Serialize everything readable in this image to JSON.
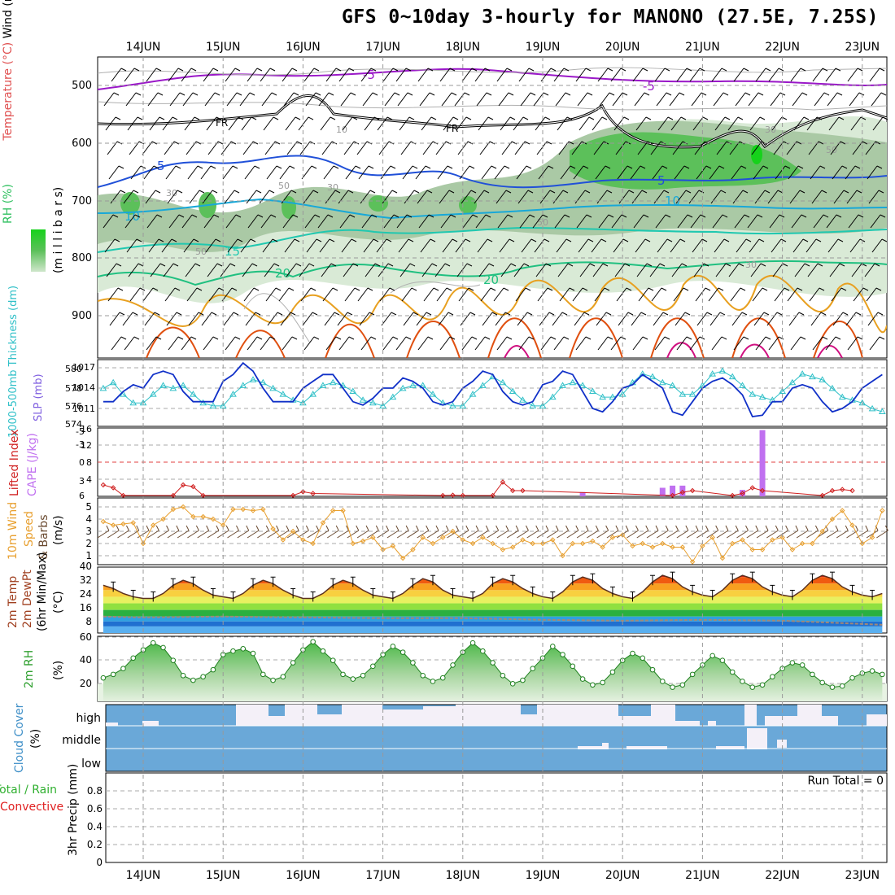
{
  "title": "GFS 0~10day 3-hourly for MANONO (27.5E, 7.25S)",
  "x_days": [
    "14JUN",
    "15JUN",
    "16JUN",
    "17JUN",
    "18JUN",
    "19JUN",
    "20JUN",
    "21JUN",
    "22JUN",
    "23JUN"
  ],
  "colors": {
    "rh_fill": "#d9ead6",
    "rh_mid": "#9ebf9a",
    "rh_high": "#5cc05a",
    "rh_max": "#16d21b",
    "temp_purple": "#9a18c8",
    "temp_blue": "#2050d8",
    "temp_cyan": "#18a8d8",
    "temp_teal": "#20c8b0",
    "temp_green": "#20c080",
    "temp_orange": "#e8a020",
    "temp_red": "#e05010",
    "temp_magenta": "#d01080",
    "freezing": "#000000",
    "slp": "#1030c8",
    "thickness": "#30c0c8",
    "lifted_index": "#d02020",
    "cape": "#c070f0",
    "wind10": "#e8a030",
    "cloud": "#6aa8d8",
    "cloud_clear": "#f4f0f8",
    "rh2m": "#40b040"
  },
  "panels": {
    "upper": {
      "labels": {
        "wind": "Wind (m/s)",
        "temperature": "Temperature (°C)",
        "rh": "RH (%)",
        "mb": "(m i l l i b a r s)"
      },
      "y_ticks": [
        "500",
        "600",
        "700",
        "800",
        "900"
      ],
      "contour_labels": [
        "-5",
        "-5",
        "FR",
        "FR",
        "5",
        "5",
        "10",
        "10",
        "15",
        "20",
        "20",
        "10",
        "30",
        "50",
        "50",
        "30",
        "30",
        "50",
        "50",
        "30"
      ]
    },
    "slp": {
      "label_left": "1000-500mb Thickness (dm)",
      "label_right": "SLP (mb)",
      "left_ticks": [
        "580",
        "578",
        "576",
        "574"
      ],
      "right_ticks": [
        "1017",
        "1014",
        "1011"
      ]
    },
    "li": {
      "label_left": "Lifted Index",
      "label_right": "CAPE (J/kg)",
      "left_ticks": [
        "-5",
        "-3",
        "0",
        "3",
        "6"
      ],
      "right_ticks": [
        "16",
        "12",
        "8",
        "4"
      ]
    },
    "wind10": {
      "label_a": "10m Wind",
      "label_b": "Speed",
      "label_c": "& Barbs",
      "label_d": "(m/s)",
      "ticks": [
        "5",
        "4",
        "3",
        "2",
        "1"
      ]
    },
    "temp2m": {
      "label_a": "2m Temp",
      "label_b": "2m DewPt",
      "label_c": "(6hr Min/Max)",
      "label_d": "(°C)",
      "ticks": [
        "40",
        "32",
        "24",
        "16",
        "8"
      ]
    },
    "rh2m": {
      "label_a": "2m RH",
      "label_b": "(%)",
      "ticks": [
        "60",
        "40",
        "20"
      ]
    },
    "cloud": {
      "label_a": "Cloud Cover",
      "label_b": "(%)",
      "levels": [
        "high",
        "middle",
        "low"
      ]
    },
    "precip": {
      "label_a": "Total / Rain",
      "label_b": "Convective",
      "label_c": "3hr Precip (mm)",
      "ticks": [
        "0.8",
        "0.6",
        "0.4",
        "0.2",
        "0"
      ],
      "run_total": "Run Total = 0"
    }
  },
  "chart_data": [
    {
      "type": "line",
      "name": "SLP (mb)",
      "x": [
        "13-12",
        "13-15",
        "13-18",
        "13-21",
        "14-00",
        "14-03",
        "14-06",
        "14-09",
        "14-12",
        "14-15",
        "14-18",
        "14-21",
        "15-00",
        "15-03",
        "15-06",
        "15-09",
        "15-12",
        "15-15",
        "15-18",
        "15-21",
        "16-00",
        "16-03",
        "16-06",
        "16-09",
        "16-12",
        "16-15",
        "16-18",
        "16-21",
        "17-00",
        "17-03",
        "17-06",
        "17-09",
        "17-12",
        "17-15",
        "17-18",
        "17-21",
        "18-00",
        "18-03",
        "18-06",
        "18-09",
        "18-12",
        "18-15",
        "18-18",
        "18-21",
        "19-00",
        "19-03",
        "19-06",
        "19-09",
        "19-12",
        "19-15",
        "19-18",
        "19-21",
        "20-00",
        "20-03",
        "20-06",
        "20-09",
        "20-12",
        "20-15",
        "20-18",
        "20-21",
        "21-00",
        "21-03",
        "21-06",
        "21-09",
        "21-12",
        "21-15",
        "21-18",
        "21-21",
        "22-00",
        "22-03",
        "22-06",
        "22-09",
        "22-12",
        "22-15",
        "22-18",
        "22-21",
        "23-00",
        "23-03",
        "23-06"
      ],
      "values": [
        1012.0,
        1012.0,
        1013.5,
        1014.5,
        1014.0,
        1016.0,
        1016.5,
        1016.0,
        1013.5,
        1012.0,
        1012.0,
        1012.0,
        1015.0,
        1016.0,
        1017.7,
        1016.5,
        1014.0,
        1012.0,
        1012.0,
        1012.0,
        1014.0,
        1015.0,
        1016.0,
        1016.0,
        1014.0,
        1012.0,
        1011.5,
        1012.5,
        1014.0,
        1014.0,
        1015.5,
        1015.0,
        1014.0,
        1012.0,
        1011.5,
        1012.0,
        1014.0,
        1015.0,
        1016.5,
        1016.0,
        1013.5,
        1012.0,
        1011.5,
        1012.0,
        1014.5,
        1015.0,
        1016.5,
        1016.0,
        1013.5,
        1011.0,
        1010.5,
        1012.0,
        1014.0,
        1014.5,
        1016.0,
        1015.0,
        1014.0,
        1010.5,
        1010.0,
        1012.0,
        1014.0,
        1015.0,
        1015.5,
        1014.5,
        1013.0,
        1009.8,
        1010.0,
        1012.0,
        1012.0,
        1014.0,
        1014.5,
        1014.0,
        1012.0,
        1010.5,
        1011.0,
        1012.0,
        1014.0,
        1015.0,
        1016.0
      ]
    },
    {
      "type": "line",
      "name": "1000-500mb Thickness (dm)",
      "x": [
        "13-12",
        "13-15",
        "13-18",
        "13-21",
        "14-00",
        "14-03",
        "14-06",
        "14-09",
        "14-12",
        "14-15",
        "14-18",
        "14-21",
        "15-00",
        "15-03",
        "15-06",
        "15-09",
        "15-12",
        "15-15",
        "15-18",
        "15-21",
        "16-00",
        "16-03",
        "16-06",
        "16-09",
        "16-12",
        "16-15",
        "16-18",
        "16-21",
        "17-00",
        "17-03",
        "17-06",
        "17-09",
        "17-12",
        "17-15",
        "17-18",
        "17-21",
        "18-00",
        "18-03",
        "18-06",
        "18-09",
        "18-12",
        "18-15",
        "18-18",
        "18-21",
        "19-00",
        "19-03",
        "19-06",
        "19-09",
        "19-12",
        "19-15",
        "19-18",
        "19-21",
        "20-00",
        "20-03",
        "20-06",
        "20-09",
        "20-12",
        "20-15",
        "20-18",
        "20-21",
        "21-00",
        "21-03",
        "21-06",
        "21-09",
        "21-12",
        "21-15",
        "21-18",
        "21-21",
        "22-00",
        "22-03",
        "22-06",
        "22-09",
        "22-12",
        "22-15",
        "22-18",
        "22-21",
        "23-00",
        "23-03",
        "23-06"
      ],
      "values": [
        578.0,
        579.0,
        577.0,
        575.5,
        575.5,
        577.0,
        578.5,
        578.0,
        578.5,
        577.0,
        575.5,
        575.0,
        575.0,
        577.0,
        578.5,
        579.5,
        579.0,
        578.0,
        577.0,
        576.0,
        575.5,
        577.0,
        578.5,
        579.0,
        578.5,
        577.5,
        576.0,
        575.5,
        575.0,
        576.5,
        578.0,
        578.5,
        578.5,
        577.0,
        575.5,
        575.0,
        575.0,
        577.0,
        578.5,
        580.0,
        579.0,
        577.5,
        576.0,
        575.0,
        575.0,
        576.5,
        578.5,
        579.0,
        578.5,
        577.5,
        576.5,
        576.5,
        577.0,
        579.0,
        580.5,
        580.0,
        579.0,
        578.5,
        577.0,
        577.0,
        578.5,
        580.5,
        581.0,
        580.0,
        578.5,
        577.0,
        576.5,
        576.0,
        577.5,
        579.0,
        580.5,
        580.0,
        579.5,
        578.0,
        576.5,
        576.0,
        575.5,
        574.5,
        574.0
      ]
    },
    {
      "type": "line",
      "name": "Lifted Index",
      "x": [
        "13-12",
        "13-15",
        "13-18",
        "14-09",
        "14-12",
        "14-15",
        "14-18",
        "15-21",
        "16-00",
        "16-03",
        "17-18",
        "17-21",
        "18-00",
        "18-09",
        "18-12",
        "18-15",
        "18-18",
        "20-15",
        "20-18",
        "20-21",
        "21-09",
        "21-12",
        "21-15",
        "21-18",
        "22-12",
        "22-15",
        "22-18",
        "22-21"
      ],
      "values": [
        4.0,
        4.5,
        6.2,
        6.3,
        4.0,
        4.3,
        6.2,
        6.2,
        5.2,
        5.5,
        6.3,
        5.8,
        6.0,
        6.3,
        3.5,
        5.0,
        5.0,
        6.2,
        5.3,
        5.0,
        6.2,
        5.5,
        4.5,
        5.0,
        6.2,
        5.0,
        4.8,
        5.0
      ]
    },
    {
      "type": "bar",
      "name": "CAPE (J/kg)",
      "x": [
        "19-12",
        "20-12",
        "20-15",
        "20-18",
        "21-12",
        "21-18"
      ],
      "values": [
        1.0,
        2.0,
        2.5,
        2.5,
        1.5,
        15.5
      ]
    },
    {
      "type": "line",
      "name": "10m Wind Speed (m/s)",
      "x": [
        "13-12",
        "13-15",
        "13-18",
        "13-21",
        "14-00",
        "14-03",
        "14-06",
        "14-09",
        "14-12",
        "14-15",
        "14-18",
        "14-21",
        "15-00",
        "15-03",
        "15-06",
        "15-09",
        "15-12",
        "15-15",
        "15-18",
        "15-21",
        "16-00",
        "16-03",
        "16-06",
        "16-09",
        "16-12",
        "16-15",
        "16-18",
        "16-21",
        "17-00",
        "17-03",
        "17-06",
        "17-09",
        "17-12",
        "17-15",
        "17-18",
        "17-21",
        "18-00",
        "18-03",
        "18-06",
        "18-09",
        "18-12",
        "18-15",
        "18-18",
        "18-21",
        "19-00",
        "19-03",
        "19-06",
        "19-09",
        "19-12",
        "19-15",
        "19-18",
        "19-21",
        "20-00",
        "20-03",
        "20-06",
        "20-09",
        "20-12",
        "20-15",
        "20-18",
        "20-21",
        "21-00",
        "21-03",
        "21-06",
        "21-09",
        "21-12",
        "21-15",
        "21-18",
        "21-21",
        "22-00",
        "22-03",
        "22-06",
        "22-09",
        "22-12",
        "22-15",
        "22-18",
        "22-21",
        "23-00",
        "23-03",
        "23-06"
      ],
      "values": [
        3.8,
        3.5,
        3.6,
        3.7,
        2.0,
        3.5,
        4.0,
        4.8,
        5.0,
        4.2,
        4.2,
        4.0,
        3.5,
        4.8,
        4.8,
        4.7,
        4.8,
        3.2,
        2.3,
        3.0,
        2.3,
        2.0,
        3.7,
        4.7,
        4.7,
        2.0,
        2.2,
        2.5,
        1.5,
        1.8,
        0.8,
        1.5,
        2.5,
        2.0,
        2.5,
        3.0,
        2.3,
        2.0,
        2.5,
        2.0,
        1.5,
        1.7,
        2.3,
        2.0,
        2.0,
        2.3,
        1.0,
        2.0,
        2.0,
        2.2,
        1.7,
        2.5,
        2.7,
        1.8,
        2.0,
        1.7,
        2.0,
        1.7,
        1.7,
        0.5,
        1.8,
        2.5,
        0.8,
        2.0,
        2.3,
        1.5,
        1.5,
        2.3,
        2.5,
        1.5,
        2.0,
        2.0,
        3.0,
        4.0,
        4.7,
        3.5,
        2.0,
        2.5,
        4.7
      ]
    },
    {
      "type": "area",
      "name": "2m Temp (°C)",
      "x": [
        "13-12",
        "13-15",
        "13-18",
        "13-21",
        "14-00",
        "14-03",
        "14-06",
        "14-09",
        "14-12",
        "14-15",
        "14-18",
        "14-21",
        "15-00",
        "15-03",
        "15-06",
        "15-09",
        "15-12",
        "15-15",
        "15-18",
        "15-21",
        "16-00",
        "16-03",
        "16-06",
        "16-09",
        "16-12",
        "16-15",
        "16-18",
        "16-21",
        "17-00",
        "17-03",
        "17-06",
        "17-09",
        "17-12",
        "17-15",
        "17-18",
        "17-21",
        "18-00",
        "18-03",
        "18-06",
        "18-09",
        "18-12",
        "18-15",
        "18-18",
        "18-21",
        "19-00",
        "19-03",
        "19-06",
        "19-09",
        "19-12",
        "19-15",
        "19-18",
        "19-21",
        "20-00",
        "20-03",
        "20-06",
        "20-09",
        "20-12",
        "20-15",
        "20-18",
        "20-21",
        "21-00",
        "21-03",
        "21-06",
        "21-09",
        "21-12",
        "21-15",
        "21-18",
        "21-21",
        "22-00",
        "22-03",
        "22-06",
        "22-09",
        "22-12",
        "22-15",
        "22-18",
        "22-21",
        "23-00",
        "23-03",
        "23-06"
      ],
      "values": [
        29,
        27,
        24,
        22,
        21,
        21,
        24,
        29,
        32,
        30,
        26,
        23,
        22,
        21,
        24,
        29,
        32,
        30,
        26,
        23,
        21,
        21,
        24,
        29,
        32,
        30,
        26,
        23,
        22,
        21,
        24,
        29,
        33,
        31,
        26,
        23,
        22,
        21,
        24,
        30,
        33,
        31,
        27,
        24,
        22,
        21,
        25,
        31,
        34,
        32,
        27,
        24,
        22,
        21,
        25,
        31,
        35,
        33,
        28,
        25,
        23,
        22,
        26,
        32,
        35,
        33,
        28,
        25,
        23,
        22,
        26,
        32,
        35,
        33,
        28,
        25,
        23,
        22,
        24
      ]
    },
    {
      "type": "line",
      "name": "2m DewPt (°C)",
      "x": [
        "13-12",
        "14-00",
        "15-00",
        "16-00",
        "17-00",
        "18-00",
        "19-00",
        "20-00",
        "21-00",
        "22-00",
        "23-00",
        "23-06"
      ],
      "values": [
        10,
        9.5,
        10,
        9.5,
        9,
        9,
        8,
        7.5,
        8,
        7.5,
        5.5,
        5
      ]
    },
    {
      "type": "area",
      "name": "2m RH (%)",
      "x": [
        "13-12",
        "13-15",
        "13-18",
        "13-21",
        "14-00",
        "14-03",
        "14-06",
        "14-09",
        "14-12",
        "14-15",
        "14-18",
        "14-21",
        "15-00",
        "15-03",
        "15-06",
        "15-09",
        "15-12",
        "15-15",
        "15-18",
        "15-21",
        "16-00",
        "16-03",
        "16-06",
        "16-09",
        "16-12",
        "16-15",
        "16-18",
        "16-21",
        "17-00",
        "17-03",
        "17-06",
        "17-09",
        "17-12",
        "17-15",
        "17-18",
        "17-21",
        "18-00",
        "18-03",
        "18-06",
        "18-09",
        "18-12",
        "18-15",
        "18-18",
        "18-21",
        "19-00",
        "19-03",
        "19-06",
        "19-09",
        "19-12",
        "19-15",
        "19-18",
        "19-21",
        "20-00",
        "20-03",
        "20-06",
        "20-09",
        "20-12",
        "20-15",
        "20-18",
        "20-21",
        "21-00",
        "21-03",
        "21-06",
        "21-09",
        "21-12",
        "21-15",
        "21-18",
        "21-21",
        "22-00",
        "22-03",
        "22-06",
        "22-09",
        "22-12",
        "22-15",
        "22-18",
        "22-21",
        "23-00",
        "23-03",
        "23-06"
      ],
      "values": [
        25,
        28,
        33,
        42,
        49,
        55,
        51,
        40,
        27,
        23,
        26,
        32,
        45,
        48,
        50,
        46,
        28,
        23,
        26,
        38,
        49,
        56,
        48,
        40,
        28,
        24,
        27,
        35,
        45,
        52,
        47,
        38,
        27,
        22,
        25,
        36,
        47,
        55,
        48,
        38,
        27,
        20,
        23,
        33,
        42,
        52,
        45,
        35,
        24,
        19,
        21,
        30,
        40,
        46,
        42,
        32,
        22,
        17,
        19,
        28,
        36,
        44,
        40,
        30,
        22,
        17,
        19,
        26,
        33,
        38,
        36,
        28,
        21,
        17,
        18,
        25,
        29,
        31,
        28
      ]
    },
    {
      "type": "bar",
      "name": "3hr Precip (mm)",
      "x": [
        "13-12",
        "23-06"
      ],
      "values": [
        0,
        0
      ]
    }
  ]
}
